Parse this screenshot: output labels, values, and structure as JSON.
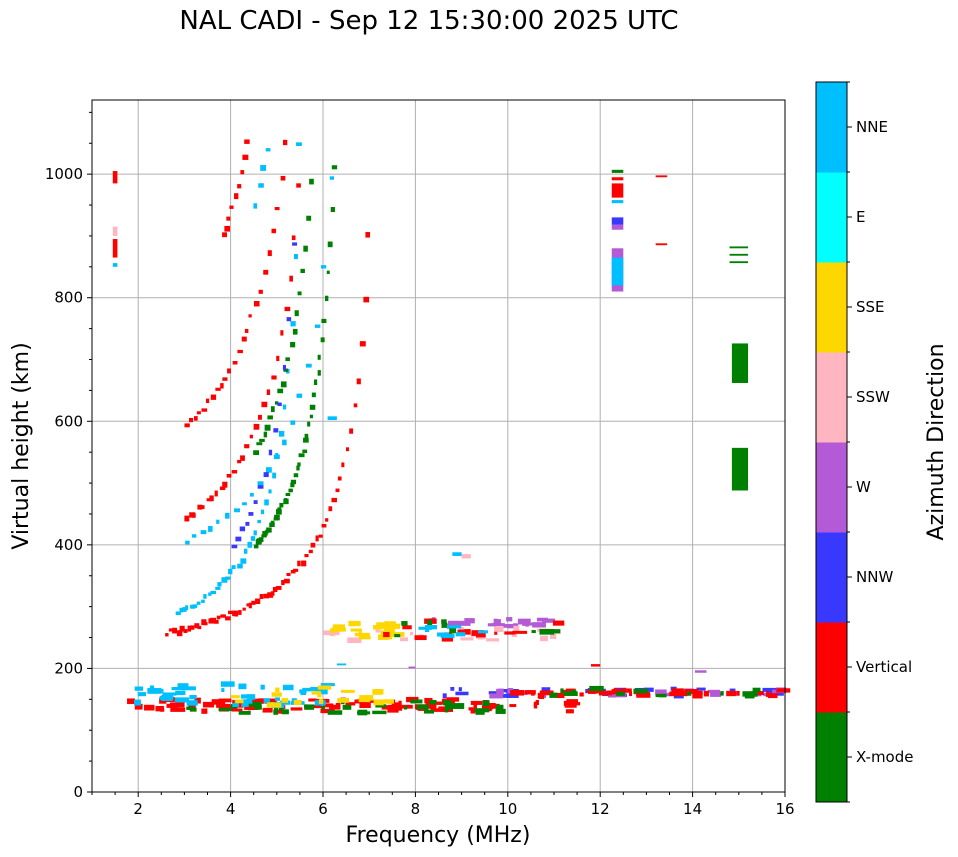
{
  "chart_data": {
    "type": "scatter",
    "title": "NAL CADI - Sep 12 15:30:00 2025 UTC",
    "xlabel": "Frequency (MHz)",
    "ylabel": "Virtual height (km)",
    "xlim": [
      1,
      16
    ],
    "ylim": [
      0,
      1120
    ],
    "xticks": [
      2,
      4,
      6,
      8,
      10,
      12,
      14,
      16
    ],
    "yticks": [
      0,
      200,
      400,
      600,
      800,
      1000
    ],
    "grid": true,
    "colorbar": {
      "label": "Azimuth Direction",
      "categories": [
        {
          "name": "X-mode",
          "color": "#008000"
        },
        {
          "name": "Vertical",
          "color": "#ff0000"
        },
        {
          "name": "NNW",
          "color": "#3838ff"
        },
        {
          "name": "W",
          "color": "#b45ad6"
        },
        {
          "name": "SSW",
          "color": "#ffb6c1"
        },
        {
          "name": "SSE",
          "color": "#ffd700"
        },
        {
          "name": "E",
          "color": "#00ffff"
        },
        {
          "name": "NNE",
          "color": "#00bfff"
        }
      ]
    },
    "traces": [
      {
        "dir": "Vertical",
        "x0": 1.5,
        "x1": 11.5,
        "h0": 130,
        "h1": 150,
        "n": 90
      },
      {
        "dir": "X-mode",
        "x0": 3.0,
        "x1": 10.0,
        "h0": 128,
        "h1": 148,
        "n": 35
      },
      {
        "dir": "NNE",
        "x0": 1.6,
        "x1": 6.0,
        "h0": 140,
        "h1": 175,
        "n": 40
      },
      {
        "dir": "SSE",
        "x0": 4.0,
        "x1": 7.5,
        "h0": 140,
        "h1": 170,
        "n": 20
      },
      {
        "dir": "NNW",
        "x0": 8.5,
        "x1": 16.0,
        "h0": 155,
        "h1": 168,
        "n": 30
      },
      {
        "dir": "W",
        "x0": 9.5,
        "x1": 16.0,
        "h0": 155,
        "h1": 165,
        "n": 20
      },
      {
        "dir": "Vertical",
        "x0": 10.0,
        "x1": 16.0,
        "h0": 155,
        "h1": 165,
        "n": 40
      },
      {
        "dir": "X-mode",
        "x0": 10.5,
        "x1": 15.5,
        "h0": 155,
        "h1": 168,
        "n": 15
      },
      {
        "dir": "W",
        "x0": 8.2,
        "x1": 11.0,
        "h0": 268,
        "h1": 280,
        "n": 25
      },
      {
        "dir": "SSW",
        "x0": 5.5,
        "x1": 11.0,
        "h0": 245,
        "h1": 265,
        "n": 25
      },
      {
        "dir": "SSE",
        "x0": 6.0,
        "x1": 7.6,
        "h0": 250,
        "h1": 275,
        "n": 20
      },
      {
        "dir": "Vertical",
        "x0": 6.5,
        "x1": 11.0,
        "h0": 245,
        "h1": 280,
        "n": 15
      },
      {
        "dir": "X-mode",
        "x0": 7.0,
        "x1": 11.0,
        "h0": 250,
        "h1": 280,
        "n": 10
      },
      {
        "dir": "NNE",
        "x0": 8.0,
        "x1": 9.5,
        "h0": 250,
        "h1": 270,
        "n": 8
      }
    ],
    "curves": [
      {
        "dir": "Vertical",
        "fmin": 2.6,
        "f0": 7.2,
        "h0": 240,
        "n": 60
      },
      {
        "dir": "X-mode",
        "fmin": 4.5,
        "f0": 6.45,
        "h0": 285,
        "n": 45
      },
      {
        "dir": "NNE",
        "fmin": 2.8,
        "f0": 5.6,
        "h0": 250,
        "n": 35
      },
      {
        "dir": "Vertical",
        "fmin": 3.0,
        "f0": 5.9,
        "h0": 380,
        "n": 30
      },
      {
        "dir": "Vertical",
        "fmin": 3.0,
        "f0": 5.9,
        "h0": 510,
        "n": 30
      },
      {
        "dir": "X-mode",
        "fmin": 4.5,
        "f0": 6.2,
        "h0": 380,
        "n": 25
      },
      {
        "dir": "NNE",
        "fmin": 3.0,
        "f0": 6.6,
        "h0": 360,
        "n": 20
      },
      {
        "dir": "NNW",
        "fmin": 4.0,
        "f0": 5.6,
        "h0": 280,
        "n": 15
      },
      {
        "dir": "Vertical",
        "fmin": 3.8,
        "f0": 5.5,
        "h0": 650,
        "n": 25
      },
      {
        "dir": "NNE",
        "fmin": 4.5,
        "f0": 5.8,
        "h0": 600,
        "n": 15
      },
      {
        "dir": "Vertical",
        "fmin": 3.6,
        "f0": 5.0,
        "h0": 810,
        "n": 20
      }
    ],
    "blocks": [
      {
        "dir": "X-mode",
        "x0": 14.85,
        "x1": 15.2,
        "h0": 662,
        "h1": 726
      },
      {
        "dir": "X-mode",
        "x0": 14.85,
        "x1": 15.2,
        "h0": 488,
        "h1": 557
      },
      {
        "dir": "X-mode",
        "x0": 14.8,
        "x1": 15.2,
        "h0": 880,
        "h1": 883
      },
      {
        "dir": "X-mode",
        "x0": 14.8,
        "x1": 15.2,
        "h0": 868,
        "h1": 871
      },
      {
        "dir": "X-mode",
        "x0": 14.8,
        "x1": 15.2,
        "h0": 856,
        "h1": 859
      },
      {
        "dir": "W",
        "x0": 12.25,
        "x1": 12.5,
        "h0": 810,
        "h1": 880
      },
      {
        "dir": "NNE",
        "x0": 12.25,
        "x1": 12.5,
        "h0": 820,
        "h1": 865
      },
      {
        "dir": "NNW",
        "x0": 12.25,
        "x1": 12.5,
        "h0": 918,
        "h1": 930
      },
      {
        "dir": "W",
        "x0": 12.25,
        "x1": 12.5,
        "h0": 910,
        "h1": 918
      },
      {
        "dir": "Vertical",
        "x0": 12.25,
        "x1": 12.5,
        "h0": 962,
        "h1": 985
      },
      {
        "dir": "X-mode",
        "x0": 12.25,
        "x1": 12.5,
        "h0": 1002,
        "h1": 1007
      },
      {
        "dir": "NNE",
        "x0": 12.25,
        "x1": 12.5,
        "h0": 953,
        "h1": 958
      },
      {
        "dir": "Vertical",
        "x0": 12.25,
        "x1": 12.5,
        "h0": 990,
        "h1": 995
      },
      {
        "dir": "Vertical",
        "x0": 13.2,
        "x1": 13.45,
        "h0": 995,
        "h1": 998
      },
      {
        "dir": "Vertical",
        "x0": 13.2,
        "x1": 13.45,
        "h0": 885,
        "h1": 888
      },
      {
        "dir": "Vertical",
        "x0": 1.45,
        "x1": 1.55,
        "h0": 985,
        "h1": 1005
      },
      {
        "dir": "Vertical",
        "x0": 1.45,
        "x1": 1.55,
        "h0": 865,
        "h1": 895
      },
      {
        "dir": "SSW",
        "x0": 1.45,
        "x1": 1.55,
        "h0": 900,
        "h1": 915
      },
      {
        "dir": "NNE",
        "x0": 1.45,
        "x1": 1.55,
        "h0": 850,
        "h1": 856
      },
      {
        "dir": "NNE",
        "x0": 8.8,
        "x1": 9.0,
        "h0": 382,
        "h1": 388
      },
      {
        "dir": "SSW",
        "x0": 9.0,
        "x1": 9.2,
        "h0": 378,
        "h1": 385
      },
      {
        "dir": "NNE",
        "x0": 6.1,
        "x1": 6.3,
        "h0": 602,
        "h1": 608
      },
      {
        "dir": "Vertical",
        "x0": 11.8,
        "x1": 12.0,
        "h0": 203,
        "h1": 207
      },
      {
        "dir": "W",
        "x0": 14.05,
        "x1": 14.3,
        "h0": 193,
        "h1": 197
      },
      {
        "dir": "NNE",
        "x0": 6.3,
        "x1": 6.5,
        "h0": 205,
        "h1": 208
      },
      {
        "dir": "W",
        "x0": 7.85,
        "x1": 8.0,
        "h0": 200,
        "h1": 203
      }
    ]
  }
}
